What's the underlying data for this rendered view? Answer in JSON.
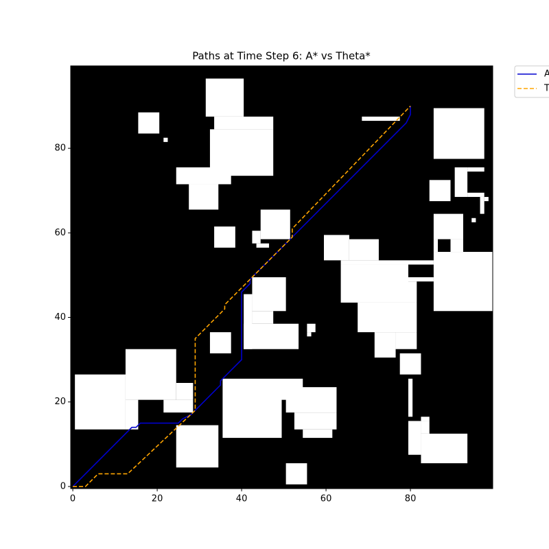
{
  "chart_data": {
    "type": "line",
    "title": "Paths at Time Step 6: A* vs Theta*",
    "xlim": [
      -0.5,
      99.5
    ],
    "ylim": [
      -0.5,
      99.5
    ],
    "xticks": [
      0,
      20,
      40,
      60,
      80
    ],
    "yticks": [
      0,
      20,
      40,
      60,
      80
    ],
    "background": "#000000",
    "obstacle_color": "#ffffff",
    "legend": "outside-upper-right",
    "obstacles": [
      [
        31.5,
        87.5,
        40.5,
        96.5
      ],
      [
        33.5,
        84.5,
        47.5,
        87.5
      ],
      [
        32.5,
        73.5,
        47.5,
        84.5
      ],
      [
        24.5,
        71.5,
        37.5,
        75.5
      ],
      [
        27.5,
        65.5,
        34.5,
        71.5
      ],
      [
        15.5,
        83.5,
        20.5,
        88.5
      ],
      [
        21.5,
        81.5,
        22.5,
        82.5
      ],
      [
        68.5,
        86.5,
        77.5,
        87.5
      ],
      [
        85.5,
        77.5,
        97.5,
        89.5
      ],
      [
        90.5,
        68.5,
        93.5,
        75.5
      ],
      [
        93.5,
        74.5,
        97.5,
        75.5
      ],
      [
        93.5,
        68.5,
        97.5,
        69.5
      ],
      [
        96.5,
        64.5,
        97.5,
        68.5
      ],
      [
        97.5,
        67.5,
        98.5,
        68.5
      ],
      [
        84.5,
        67.5,
        89.5,
        72.5
      ],
      [
        94.5,
        62.5,
        95.5,
        63.5
      ],
      [
        85.5,
        58.5,
        92.5,
        64.5
      ],
      [
        85.5,
        55.5,
        86.5,
        58.5
      ],
      [
        89.5,
        55.5,
        92.5,
        58.5
      ],
      [
        85.5,
        41.5,
        99.5,
        55.5
      ],
      [
        59.5,
        53.5,
        65.5,
        59.5
      ],
      [
        65.5,
        53.5,
        72.5,
        58.5
      ],
      [
        63.5,
        52.5,
        85.5,
        53.5
      ],
      [
        63.5,
        43.5,
        79.5,
        52.5
      ],
      [
        79.5,
        48.5,
        85.5,
        49.5
      ],
      [
        79.5,
        43.5,
        81.5,
        48.5
      ],
      [
        67.5,
        36.5,
        81.5,
        43.5
      ],
      [
        71.5,
        30.5,
        76.5,
        36.5
      ],
      [
        76.5,
        32.5,
        81.5,
        36.5
      ],
      [
        77.5,
        26.5,
        82.5,
        31.5
      ],
      [
        79.5,
        16.5,
        80.5,
        25.5
      ],
      [
        79.5,
        7.5,
        82.5,
        15.5
      ],
      [
        82.5,
        15.5,
        84.5,
        16.5
      ],
      [
        82.5,
        5.5,
        93.5,
        12.5
      ],
      [
        82.5,
        12.5,
        84.5,
        15.5
      ],
      [
        44.5,
        58.5,
        51.5,
        65.5
      ],
      [
        42.5,
        57.5,
        44.5,
        60.5
      ],
      [
        43.5,
        56.5,
        46.5,
        57.5
      ],
      [
        33.5,
        56.5,
        38.5,
        61.5
      ],
      [
        42.5,
        41.5,
        50.5,
        49.5
      ],
      [
        42.5,
        38.5,
        47.5,
        41.5
      ],
      [
        40.5,
        32.5,
        42.5,
        45.5
      ],
      [
        40.5,
        32.5,
        53.5,
        38.5
      ],
      [
        55.5,
        36.5,
        57.5,
        38.5
      ],
      [
        55.5,
        35.5,
        56.5,
        36.5
      ],
      [
        32.5,
        31.5,
        37.5,
        36.5
      ],
      [
        0.5,
        13.5,
        12.5,
        26.5
      ],
      [
        12.5,
        20.5,
        24.5,
        32.5
      ],
      [
        12.5,
        13.5,
        15.5,
        20.5
      ],
      [
        21.5,
        17.5,
        28.5,
        20.5
      ],
      [
        24.5,
        20.5,
        28.5,
        24.5
      ],
      [
        24.5,
        4.5,
        34.5,
        14.5
      ],
      [
        35.5,
        11.5,
        49.5,
        25.5
      ],
      [
        49.5,
        20.5,
        54.5,
        25.5
      ],
      [
        50.5,
        17.5,
        62.5,
        23.5
      ],
      [
        52.5,
        13.5,
        62.5,
        17.5
      ],
      [
        54.5,
        11.5,
        61.5,
        13.5
      ],
      [
        50.5,
        0.5,
        55.5,
        5.5
      ]
    ],
    "series": [
      {
        "name": "A*",
        "color": "#0000cd",
        "linestyle": "solid",
        "x": [
          0,
          14,
          15,
          16,
          25,
          26,
          28,
          29,
          35,
          35,
          40,
          40,
          41,
          42,
          42,
          78,
          79,
          80,
          80
        ],
        "values": [
          0,
          14,
          14,
          15,
          15,
          16,
          17,
          18,
          24,
          25,
          30,
          46,
          47,
          48,
          49,
          85,
          86,
          88,
          90
        ]
      },
      {
        "name": "Theta*",
        "color": "#ffa500",
        "linestyle": "dashed",
        "x": [
          0,
          3,
          6,
          13,
          29,
          29,
          36,
          36,
          52,
          52,
          80
        ],
        "values": [
          0,
          0,
          3,
          3,
          18,
          35,
          42,
          43,
          59,
          61,
          90
        ]
      }
    ]
  }
}
